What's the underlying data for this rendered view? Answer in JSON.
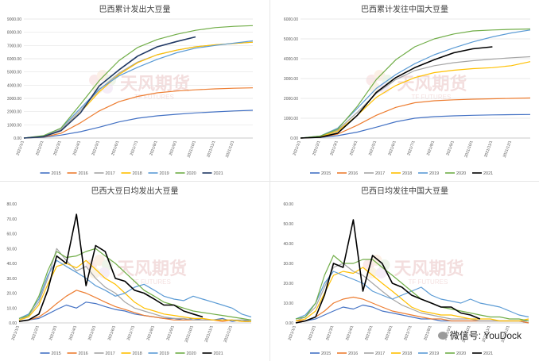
{
  "watermark": "微信号: YouDock",
  "logo_text": "天风期货",
  "logo_sub": "TF FUTURES",
  "colors": {
    "2015": "#4472C4",
    "2016": "#ED7D31",
    "2017": "#A5A5A5",
    "2018": "#FFC000",
    "2019": "#5B9BD5",
    "2020": "#70AD47",
    "2021_nav": "#203864",
    "2021_black": "#000000"
  },
  "chart_data": [
    {
      "type": "line",
      "title": "巴西累计发出大豆量",
      "xlabel": "",
      "ylabel": "",
      "x_tick_labels": [
        "2021/1/1",
        "2021/2/1",
        "2021/3/1",
        "2021/4/1",
        "2021/5/1",
        "2021/6/1",
        "2021/7/1",
        "2021/8/1",
        "2021/9/1",
        "2021/10/1",
        "2021/11/1",
        "2021/12/1"
      ],
      "y_tick_labels": [
        "0.00",
        "1000.00",
        "2000.00",
        "3000.00",
        "4000.00",
        "5000.00",
        "6000.00",
        "7000.00",
        "8000.00",
        "9000.00"
      ],
      "ylim": [
        0,
        9000
      ],
      "grid": true,
      "legend": "bottom",
      "x_dates": [
        "2021/1/1",
        "2021/2/1",
        "2021/3/1",
        "2021/4/1",
        "2021/5/1",
        "2021/6/1",
        "2021/7/1",
        "2021/8/1",
        "2021/9/1",
        "2021/10/1",
        "2021/11/1",
        "2021/12/1",
        "2021/12/31"
      ],
      "series": [
        {
          "name": "2015",
          "color_key": "2015",
          "values": [
            0,
            60,
            220,
            480,
            820,
            1220,
            1500,
            1680,
            1800,
            1900,
            1980,
            2050,
            2100
          ]
        },
        {
          "name": "2016",
          "color_key": "2016",
          "values": [
            0,
            80,
            360,
            1150,
            2050,
            2750,
            3150,
            3420,
            3560,
            3650,
            3720,
            3770,
            3800
          ]
        },
        {
          "name": "2017",
          "color_key": "2017",
          "values": [
            0,
            120,
            650,
            2100,
            3650,
            4900,
            5750,
            6300,
            6650,
            6900,
            7050,
            7150,
            7250
          ]
        },
        {
          "name": "2018",
          "color_key": "2018",
          "values": [
            0,
            100,
            550,
            1950,
            3500,
            4800,
            5700,
            6300,
            6650,
            6900,
            7050,
            7150,
            7250
          ]
        },
        {
          "name": "2019",
          "color_key": "2019",
          "values": [
            0,
            150,
            750,
            2250,
            3700,
            4700,
            5350,
            5950,
            6450,
            6800,
            7000,
            7180,
            7350
          ]
        },
        {
          "name": "2020",
          "color_key": "2020",
          "values": [
            0,
            180,
            750,
            2550,
            4350,
            5850,
            6850,
            7450,
            7850,
            8150,
            8350,
            8450,
            8500
          ]
        },
        {
          "name": "2021",
          "color_key": "2021_nav",
          "values": [
            0,
            100,
            550,
            1900,
            3950,
            5150,
            6200,
            6900,
            7300,
            7650,
            null,
            null,
            null
          ]
        }
      ]
    },
    {
      "type": "line",
      "title": "巴西累计发往中国大豆量",
      "xlabel": "",
      "ylabel": "",
      "x_tick_labels": [
        "2021/1/1",
        "2021/2/1",
        "2021/3/1",
        "2021/4/1",
        "2021/5/1",
        "2021/6/1",
        "2021/7/1",
        "2021/8/1",
        "2021/9/1",
        "2021/10/1",
        "2021/11/1",
        "2021/12/1"
      ],
      "y_tick_labels": [
        "0.00",
        "1000.00",
        "2000.00",
        "3000.00",
        "4000.00",
        "5000.00",
        "6000.00"
      ],
      "ylim": [
        0,
        6000
      ],
      "grid": true,
      "legend": "bottom",
      "x_dates": [
        "2021/1/1",
        "2021/2/1",
        "2021/3/1",
        "2021/4/1",
        "2021/5/1",
        "2021/6/1",
        "2021/7/1",
        "2021/8/1",
        "2021/9/1",
        "2021/10/1",
        "2021/11/1",
        "2021/12/1",
        "2021/12/31"
      ],
      "series": [
        {
          "name": "2015",
          "color_key": "2015",
          "values": [
            0,
            30,
            120,
            300,
            550,
            820,
            1000,
            1080,
            1120,
            1150,
            1170,
            1180,
            1190
          ]
        },
        {
          "name": "2016",
          "color_key": "2016",
          "values": [
            0,
            40,
            200,
            650,
            1150,
            1550,
            1780,
            1880,
            1930,
            1960,
            1980,
            2000,
            2020
          ]
        },
        {
          "name": "2017",
          "color_key": "2017",
          "values": [
            0,
            80,
            400,
            1300,
            2250,
            2950,
            3400,
            3650,
            3800,
            3900,
            3980,
            4050,
            4100
          ]
        },
        {
          "name": "2018",
          "color_key": "2018",
          "values": [
            0,
            60,
            350,
            1150,
            2050,
            2650,
            3050,
            3300,
            3420,
            3500,
            3550,
            3650,
            3850
          ]
        },
        {
          "name": "2019",
          "color_key": "2019",
          "values": [
            0,
            100,
            500,
            1500,
            2500,
            3200,
            3750,
            4200,
            4550,
            4850,
            5100,
            5300,
            5450
          ]
        },
        {
          "name": "2020",
          "color_key": "2020",
          "values": [
            0,
            100,
            450,
            1600,
            2950,
            3950,
            4600,
            5000,
            5250,
            5400,
            5450,
            5480,
            5500
          ]
        },
        {
          "name": "2021",
          "color_key": "2021_black",
          "values": [
            0,
            40,
            250,
            1150,
            2300,
            3050,
            3550,
            3950,
            4300,
            4500,
            4600,
            null,
            null
          ]
        }
      ]
    },
    {
      "type": "line",
      "title": "巴西大豆日均发出大豆量",
      "xlabel": "",
      "ylabel": "",
      "x_tick_labels": [
        "2021/1/1",
        "2021/2/1",
        "2021/3/1",
        "2021/4/1",
        "2021/5/1",
        "2021/6/1",
        "2021/7/1",
        "2021/8/1",
        "2021/9/1",
        "2021/10/1",
        "2021/11/1",
        "2021/12/1"
      ],
      "y_tick_labels": [
        "0.00",
        "10.00",
        "20.00",
        "30.00",
        "40.00",
        "50.00",
        "60.00",
        "70.00",
        "80.00"
      ],
      "ylim": [
        0,
        80
      ],
      "grid": false,
      "legend": "bottom",
      "x_dates": [
        "2021/1/1",
        "2021/1/16",
        "2021/2/1",
        "2021/2/15",
        "2021/3/1",
        "2021/3/16",
        "2021/4/1",
        "2021/4/16",
        "2021/5/1",
        "2021/5/16",
        "2021/6/1",
        "2021/6/16",
        "2021/7/1",
        "2021/7/16",
        "2021/8/1",
        "2021/8/16",
        "2021/9/1",
        "2021/9/16",
        "2021/10/1",
        "2021/10/16",
        "2021/11/1",
        "2021/11/16",
        "2021/12/1",
        "2021/12/16",
        "2021/12/31"
      ],
      "series": [
        {
          "name": "2015",
          "color_key": "2015",
          "values": [
            1,
            2,
            3,
            6,
            9,
            12,
            10,
            14,
            13,
            11,
            9,
            8,
            6,
            5,
            4,
            3,
            3,
            2,
            3,
            2,
            2,
            3,
            1,
            2,
            1
          ]
        },
        {
          "name": "2016",
          "color_key": "2016",
          "values": [
            1,
            2,
            4,
            8,
            13,
            18,
            22,
            20,
            17,
            14,
            11,
            9,
            7,
            5,
            4,
            3,
            2,
            2,
            2,
            2,
            2,
            1,
            2,
            1,
            1
          ]
        },
        {
          "name": "2017",
          "color_key": "2017",
          "values": [
            2,
            5,
            14,
            30,
            50,
            42,
            35,
            38,
            30,
            24,
            20,
            14,
            10,
            8,
            6,
            4,
            3,
            3,
            2,
            2,
            2,
            2,
            2,
            2,
            2
          ]
        },
        {
          "name": "2018",
          "color_key": "2018",
          "values": [
            2,
            4,
            12,
            26,
            38,
            40,
            37,
            42,
            36,
            30,
            26,
            20,
            14,
            10,
            8,
            6,
            5,
            4,
            3,
            3,
            2,
            2,
            2,
            1,
            1
          ]
        },
        {
          "name": "2019",
          "color_key": "2019",
          "values": [
            3,
            6,
            16,
            32,
            42,
            38,
            34,
            30,
            25,
            22,
            18,
            20,
            24,
            26,
            22,
            18,
            16,
            15,
            18,
            16,
            14,
            12,
            10,
            6,
            4
          ]
        },
        {
          "name": "2020",
          "color_key": "2020",
          "values": [
            3,
            5,
            18,
            35,
            48,
            44,
            45,
            48,
            50,
            45,
            40,
            34,
            28,
            22,
            18,
            14,
            12,
            10,
            8,
            7,
            6,
            5,
            4,
            3,
            2
          ]
        },
        {
          "name": "2021",
          "color_key": "2021_black",
          "values": [
            1,
            2,
            6,
            22,
            45,
            40,
            73,
            25,
            52,
            48,
            30,
            28,
            22,
            20,
            16,
            12,
            12,
            8,
            6,
            4,
            null,
            null,
            null,
            null,
            null
          ]
        }
      ]
    },
    {
      "type": "line",
      "title": "巴西日均发往中国大豆量",
      "xlabel": "",
      "ylabel": "",
      "x_tick_labels": [
        "2021/1/1",
        "2021/2/1",
        "2021/3/1",
        "2021/4/1",
        "2021/5/1",
        "2021/6/1",
        "2021/7/1",
        "2021/8/1",
        "2021/9/1",
        "2021/10/1",
        "2021/11/1",
        "2021/12/1"
      ],
      "y_tick_labels": [
        "0.00",
        "10.00",
        "20.00",
        "30.00",
        "40.00",
        "50.00",
        "60.00"
      ],
      "ylim": [
        0,
        60
      ],
      "grid": false,
      "legend": "bottom",
      "x_dates": [
        "2021/1/1",
        "2021/1/16",
        "2021/2/1",
        "2021/2/15",
        "2021/3/1",
        "2021/3/16",
        "2021/4/1",
        "2021/4/16",
        "2021/5/1",
        "2021/5/16",
        "2021/6/1",
        "2021/6/16",
        "2021/7/1",
        "2021/7/16",
        "2021/8/1",
        "2021/8/16",
        "2021/9/1",
        "2021/9/16",
        "2021/10/1",
        "2021/10/16",
        "2021/11/1",
        "2021/11/16",
        "2021/12/1",
        "2021/12/16",
        "2021/12/31"
      ],
      "series": [
        {
          "name": "2015",
          "color_key": "2015",
          "values": [
            0,
            1,
            2,
            4,
            6,
            8,
            7,
            9,
            8,
            6,
            5,
            4,
            3,
            2,
            2,
            1,
            1,
            1,
            1,
            1,
            1,
            1,
            1,
            1,
            0
          ]
        },
        {
          "name": "2016",
          "color_key": "2016",
          "values": [
            1,
            1,
            3,
            6,
            10,
            12,
            13,
            12,
            10,
            8,
            6,
            5,
            4,
            3,
            2,
            2,
            1,
            1,
            1,
            1,
            1,
            1,
            1,
            1,
            0
          ]
        },
        {
          "name": "2017",
          "color_key": "2017",
          "values": [
            1,
            3,
            8,
            18,
            28,
            30,
            26,
            24,
            20,
            16,
            12,
            9,
            7,
            5,
            4,
            3,
            2,
            2,
            2,
            1,
            1,
            1,
            1,
            1,
            1
          ]
        },
        {
          "name": "2018",
          "color_key": "2018",
          "values": [
            1,
            2,
            6,
            15,
            24,
            26,
            25,
            28,
            24,
            20,
            16,
            12,
            8,
            6,
            5,
            4,
            4,
            3,
            2,
            2,
            2,
            1,
            1,
            1,
            2
          ]
        },
        {
          "name": "2019",
          "color_key": "2019",
          "values": [
            2,
            4,
            10,
            20,
            26,
            24,
            22,
            20,
            16,
            14,
            12,
            14,
            16,
            18,
            14,
            12,
            11,
            10,
            12,
            10,
            9,
            8,
            6,
            4,
            3
          ]
        },
        {
          "name": "2020",
          "color_key": "2020",
          "values": [
            2,
            3,
            10,
            24,
            34,
            30,
            30,
            32,
            32,
            28,
            24,
            20,
            16,
            12,
            10,
            8,
            7,
            6,
            5,
            4,
            3,
            3,
            2,
            2,
            1
          ]
        },
        {
          "name": "2021",
          "color_key": "2021_black",
          "values": [
            0,
            1,
            3,
            14,
            30,
            28,
            52,
            16,
            34,
            30,
            20,
            18,
            14,
            12,
            10,
            8,
            8,
            5,
            4,
            2,
            null,
            null,
            null,
            null,
            null
          ]
        }
      ]
    }
  ]
}
